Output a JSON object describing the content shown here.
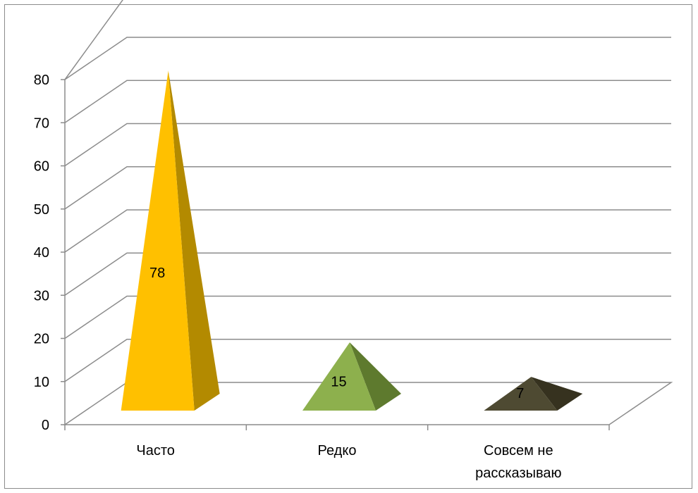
{
  "chart_data": {
    "type": "bar",
    "style": "3d-pyramid",
    "categories": [
      "Часто",
      "Редко",
      "Совсем не рассказываю"
    ],
    "category_label_lines": [
      [
        "Часто"
      ],
      [
        "Редко"
      ],
      [
        "Совсем не",
        "рассказываю"
      ]
    ],
    "values": [
      78,
      15,
      7
    ],
    "data_labels": [
      "78",
      "15",
      "7"
    ],
    "ylim": [
      0,
      80
    ],
    "yticks": [
      0,
      10,
      20,
      30,
      40,
      50,
      60,
      70,
      80
    ],
    "grid": true,
    "legend": "none",
    "colors": [
      {
        "front": "#FFC000",
        "side": "#B38A00"
      },
      {
        "front": "#8DB04D",
        "side": "#5E7A2E"
      },
      {
        "front": "#4E4A32",
        "side": "#36321F"
      }
    ],
    "grid_color": "#8c8c8c"
  }
}
